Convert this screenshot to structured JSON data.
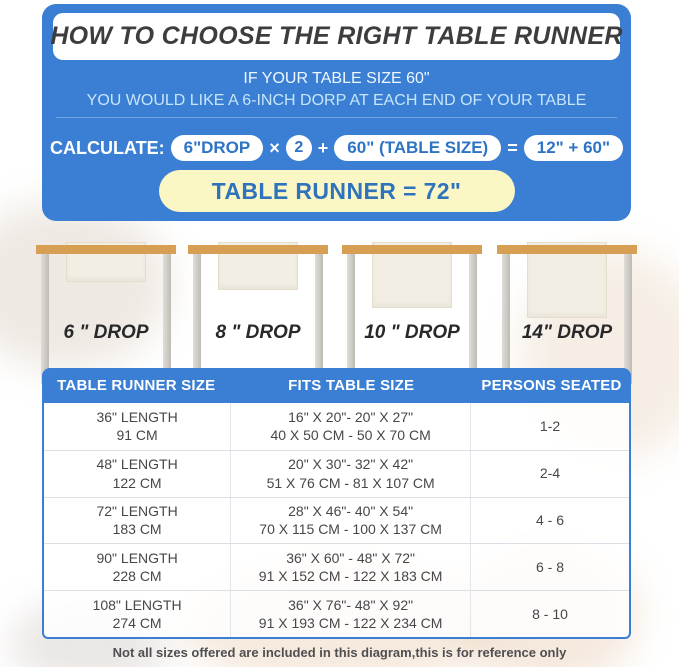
{
  "colors": {
    "panel_blue": "#3a7fd3",
    "pill_text_blue": "#2e74c4",
    "result_yellow": "#fbf7c5",
    "tabletop_tan": "#d79f53",
    "runner_cream": "#f2eee3",
    "title_dark": "#3d3d40"
  },
  "header": {
    "title": "HOW TO CHOOSE THE RIGHT TABLE RUNNER",
    "condition_line1": "IF YOUR TABLE SIZE 60\"",
    "condition_line2": "YOU WOULD LIKE A 6-INCH DORP AT EACH END OF YOUR TABLE"
  },
  "formula": {
    "label": "CALCULATE:",
    "drop_pill": "6\"DROP",
    "times": "×",
    "multiplier": "2",
    "plus": "+",
    "table_pill": "60\" (TABLE SIZE)",
    "equals": "=",
    "sum_pill": "12\" + 60\"",
    "result": "TABLE RUNNER = 72\""
  },
  "drops": [
    {
      "label": "6 \" DROP"
    },
    {
      "label": "8 \" DROP"
    },
    {
      "label": "10 \" DROP"
    },
    {
      "label": "14\" DROP"
    }
  ],
  "size_table": {
    "headers": [
      "TABLE RUNNER SIZE",
      "FITS TABLE SIZE",
      "PERSONS SEATED"
    ],
    "rows": [
      {
        "runner_in": "36\" LENGTH",
        "runner_cm": "91 CM",
        "fits_in": "16\" X 20\"- 20\" X 27\"",
        "fits_cm": "40 X 50 CM - 50 X 70 CM",
        "persons": "1-2"
      },
      {
        "runner_in": "48\" LENGTH",
        "runner_cm": "122 CM",
        "fits_in": "20\" X 30\"- 32\" X 42\"",
        "fits_cm": "51 X 76 CM - 81 X 107 CM",
        "persons": "2-4"
      },
      {
        "runner_in": "72\" LENGTH",
        "runner_cm": "183 CM",
        "fits_in": "28\" X 46\"- 40\" X 54\"",
        "fits_cm": "70 X 115 CM - 100 X 137 CM",
        "persons": "4 - 6"
      },
      {
        "runner_in": "90\" LENGTH",
        "runner_cm": "228 CM",
        "fits_in": "36\" X 60\" - 48\" X 72\"",
        "fits_cm": "91 X 152 CM - 122 X 183 CM",
        "persons": "6 - 8"
      },
      {
        "runner_in": "108\" LENGTH",
        "runner_cm": "274 CM",
        "fits_in": "36\" X 76\"- 48\" X 92\"",
        "fits_cm": "91 X 193 CM - 122 X 234 CM",
        "persons": "8 - 10"
      }
    ]
  },
  "footer": {
    "note": "Not all sizes offered are included in this diagram,this is for reference only"
  }
}
